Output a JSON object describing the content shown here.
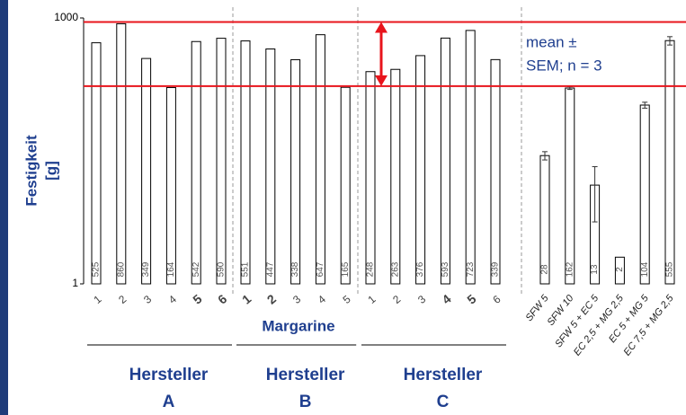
{
  "chart_data": {
    "type": "bar",
    "ylabel_lines": [
      "Festigkeit",
      "[g]"
    ],
    "xlabel": "Margarine",
    "log_y": true,
    "ylim": [
      1,
      1000
    ],
    "yticks": [
      1,
      1000
    ],
    "bar_color": "#ffffff",
    "reference_lines": [
      170,
      900
    ],
    "reference_color": "#e8141c",
    "annotation_lines": [
      "mean ±",
      "SEM; n = 3"
    ],
    "groups": [
      {
        "name_lines": [
          "Hersteller",
          "A"
        ],
        "categories": [
          "1",
          "2",
          "3",
          "4",
          "5",
          "6"
        ],
        "bold": [
          false,
          false,
          false,
          false,
          true,
          true
        ],
        "values": [
          525,
          860,
          349,
          164,
          542,
          590
        ]
      },
      {
        "name_lines": [
          "Hersteller",
          "B"
        ],
        "categories": [
          "1",
          "2",
          "3",
          "4",
          "5"
        ],
        "bold": [
          true,
          true,
          false,
          false,
          false
        ],
        "values": [
          551,
          447,
          338,
          647,
          165
        ]
      },
      {
        "name_lines": [
          "Hersteller",
          "C"
        ],
        "categories": [
          "1",
          "2",
          "3",
          "4",
          "5",
          "6"
        ],
        "bold": [
          false,
          false,
          false,
          true,
          true,
          false
        ],
        "values": [
          248,
          263,
          376,
          593,
          723,
          339
        ]
      },
      {
        "categories": [
          "SFW 5",
          "SFW 10",
          "SFW 5 + EC 5",
          "EC 2,5 + MG 2,5",
          "EC 5 + MG 5",
          "EC 7,5 + MG 2,5"
        ],
        "italic": true,
        "values": [
          28,
          162,
          13,
          2,
          104,
          555
        ],
        "errors": [
          3,
          6,
          8,
          null,
          8,
          60
        ]
      }
    ]
  }
}
